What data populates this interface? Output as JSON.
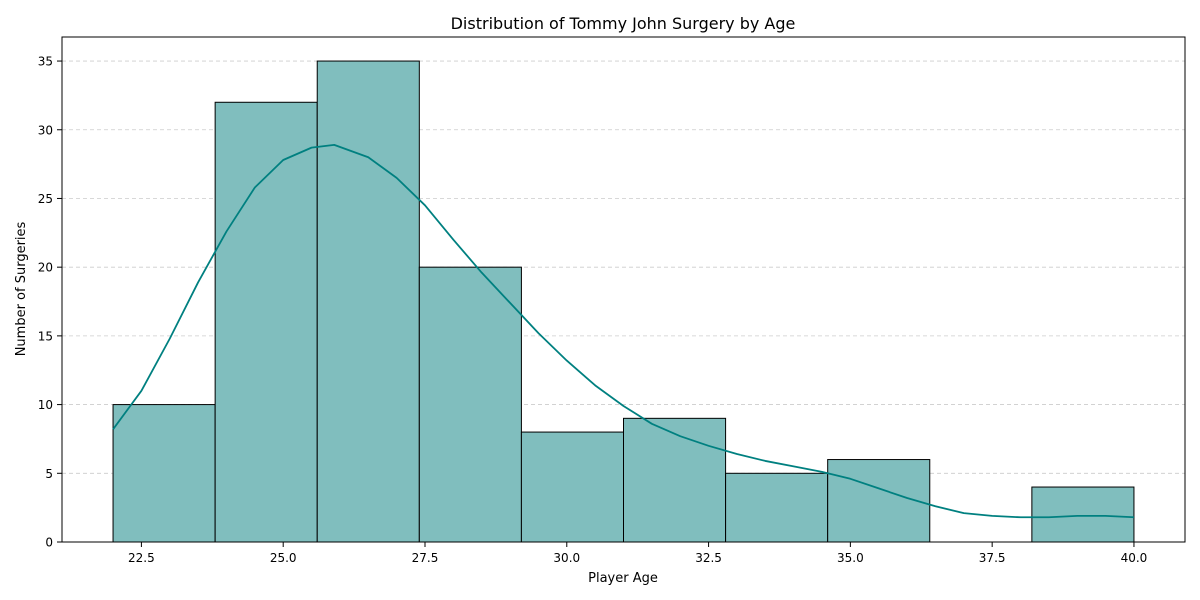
{
  "chart_data": {
    "type": "bar",
    "title": "Distribution of Tommy John Surgery by Age",
    "xlabel": "Player Age",
    "ylabel": "Number of Surgeries",
    "xlim": [
      21.1,
      40.9
    ],
    "ylim": [
      0,
      36.75
    ],
    "xticks": [
      22.5,
      25.0,
      27.5,
      30.0,
      32.5,
      35.0,
      37.5,
      40.0
    ],
    "xtick_labels": [
      "22.5",
      "25.0",
      "27.5",
      "30.0",
      "32.5",
      "35.0",
      "37.5",
      "40.0"
    ],
    "yticks": [
      0,
      5,
      10,
      15,
      20,
      25,
      30,
      35
    ],
    "ytick_labels": [
      "0",
      "5",
      "10",
      "15",
      "20",
      "25",
      "30",
      "35"
    ],
    "grid": "y-dashed",
    "bins": [
      {
        "x0": 22.0,
        "x1": 23.8,
        "count": 10
      },
      {
        "x0": 23.8,
        "x1": 25.6,
        "count": 32
      },
      {
        "x0": 25.6,
        "x1": 27.4,
        "count": 35
      },
      {
        "x0": 27.4,
        "x1": 29.2,
        "count": 20
      },
      {
        "x0": 29.2,
        "x1": 31.0,
        "count": 8
      },
      {
        "x0": 31.0,
        "x1": 32.8,
        "count": 9
      },
      {
        "x0": 32.8,
        "x1": 34.6,
        "count": 5
      },
      {
        "x0": 34.6,
        "x1": 36.4,
        "count": 6
      },
      {
        "x0": 36.4,
        "x1": 38.2,
        "count": 0
      },
      {
        "x0": 38.2,
        "x1": 40.0,
        "count": 4
      }
    ],
    "kde": {
      "x": [
        22.0,
        22.5,
        23.0,
        23.5,
        24.0,
        24.5,
        25.0,
        25.5,
        25.9,
        26.5,
        27.0,
        27.5,
        28.0,
        28.5,
        29.0,
        29.5,
        30.0,
        30.5,
        31.0,
        31.5,
        32.0,
        32.5,
        33.0,
        33.5,
        34.0,
        34.5,
        35.0,
        35.5,
        36.0,
        36.5,
        37.0,
        37.5,
        38.0,
        38.5,
        39.0,
        39.5,
        40.0
      ],
      "y": [
        8.2,
        11.0,
        14.8,
        18.9,
        22.6,
        25.8,
        27.8,
        28.7,
        28.9,
        28.0,
        26.5,
        24.5,
        22.0,
        19.6,
        17.4,
        15.2,
        13.2,
        11.4,
        9.9,
        8.6,
        7.7,
        7.0,
        6.4,
        5.9,
        5.5,
        5.1,
        4.6,
        3.9,
        3.2,
        2.6,
        2.1,
        1.9,
        1.8,
        1.8,
        1.9,
        1.9,
        1.8
      ]
    },
    "colors": {
      "bar_fill": "#80bebe",
      "bar_edge": "#000000",
      "kde_line": "#008080",
      "grid": "#cccccc"
    }
  }
}
